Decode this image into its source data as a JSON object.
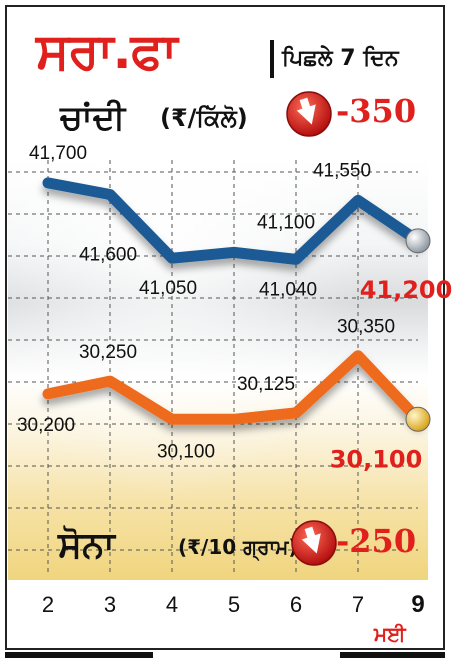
{
  "header": {
    "title": "ਸਰਾ.ਫਾ",
    "subtitle": "ਪਿਛਲੇ 7 ਦਿਨ"
  },
  "silver": {
    "name": "ਚਾਂਦੀ",
    "unit": "(₹/ਕਿੱਲੋ)",
    "change": "-350"
  },
  "gold": {
    "name": "ਸੋਨਾ",
    "unit": "(₹/10 ਗ੍ਰਾਮ)",
    "change": "-250"
  },
  "month_label": "ਮਈ",
  "colors": {
    "title_red": "#e0201c",
    "silver_line": "#1a5a96",
    "gold_line": "#ee6a1e",
    "badge_red": "#d11a1a"
  },
  "chart_data": [
    {
      "type": "line",
      "title": "ਚਾਂਦੀ (₹/ਕਿੱਲੋ)",
      "x": [
        2,
        3,
        4,
        5,
        6,
        7,
        9
      ],
      "x_tick_labels": [
        "2",
        "3",
        "4",
        "5",
        "6",
        "7",
        "9"
      ],
      "highlighted_x": "9",
      "series": [
        {
          "name": "ਚਾਂਦੀ",
          "values": [
            41700,
            41600,
            41050,
            41100,
            41040,
            41550,
            41200
          ],
          "labels": [
            "41,700",
            "41,600",
            "41,050",
            "41,100",
            "41,040",
            "41,550",
            "41,200"
          ]
        }
      ],
      "ylim": [
        41000,
        41760
      ],
      "grid": true
    },
    {
      "type": "line",
      "title": "ਸੋਨਾ (₹/10 ਗ੍ਰਾਮ)",
      "x": [
        2,
        3,
        4,
        5,
        6,
        7,
        9
      ],
      "x_tick_labels": [
        "2",
        "3",
        "4",
        "5",
        "6",
        "7",
        "9"
      ],
      "series": [
        {
          "name": "ਸੋਨਾ",
          "values": [
            30200,
            30250,
            30100,
            30100,
            30125,
            30350,
            30100
          ],
          "labels": [
            "30,200",
            "30,250",
            "30,100",
            "",
            "30,125",
            "30,350",
            "30,100"
          ]
        }
      ],
      "ylim": [
        30050,
        30400
      ],
      "grid": true
    }
  ]
}
